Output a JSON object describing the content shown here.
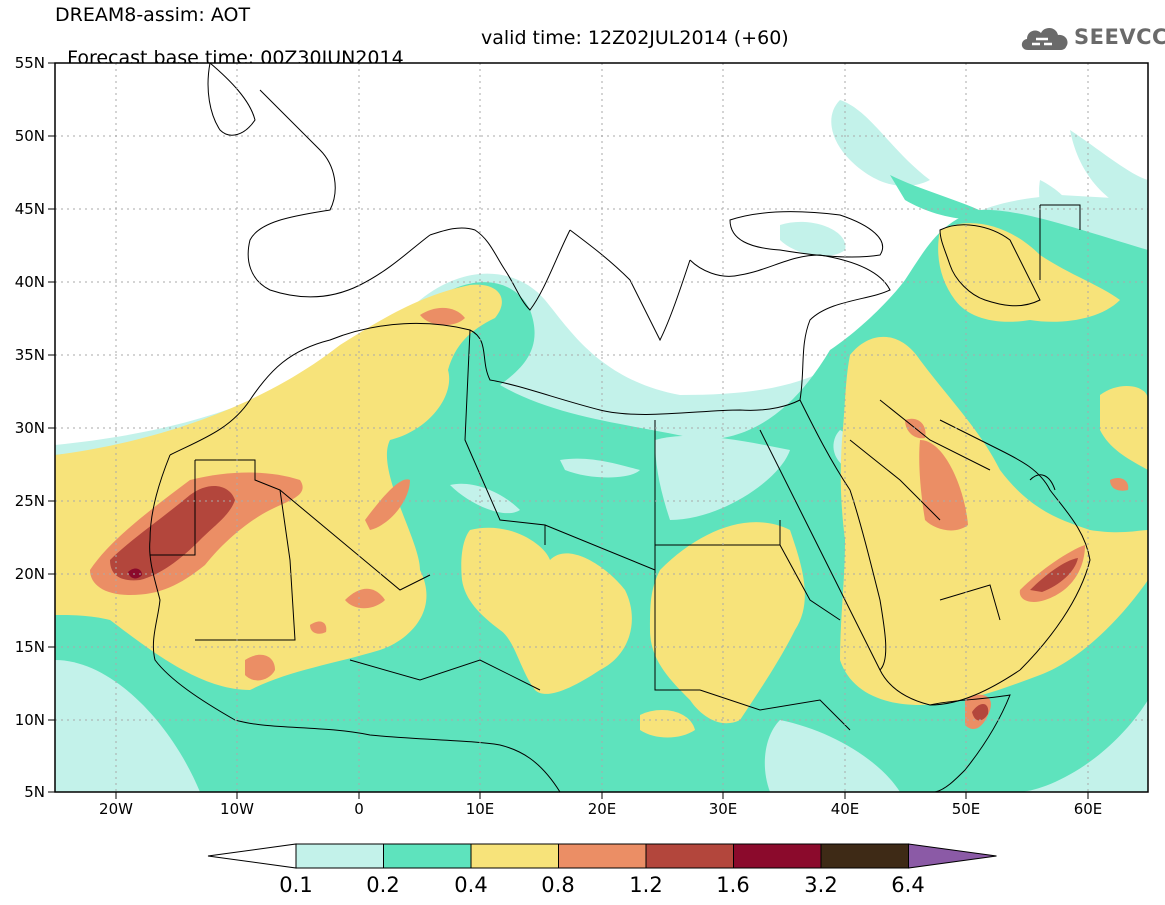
{
  "header": {
    "line1": "DREAM8-assim: AOT",
    "base_time": "Forecast base time: 00Z30JUN2014",
    "valid_time": "valid time: 12Z02JUL2014 (+60)"
  },
  "logo": {
    "text": "SEEVCCC",
    "icon": "cloud-icon"
  },
  "map": {
    "x_ticks": [
      "20W",
      "10W",
      "0",
      "10E",
      "20E",
      "30E",
      "40E",
      "50E",
      "60E"
    ],
    "y_ticks": [
      "55N",
      "50N",
      "45N",
      "40N",
      "35N",
      "30N",
      "25N",
      "20N",
      "15N",
      "10N",
      "5N"
    ],
    "lon_range": [
      -25,
      65
    ],
    "lat_range": [
      5,
      55
    ],
    "gridlines": true
  },
  "legend": {
    "levels": [
      "0.1",
      "0.2",
      "0.4",
      "0.8",
      "1.2",
      "1.6",
      "3.2",
      "6.4"
    ],
    "colors": [
      "#ffffff",
      "#c3f2ea",
      "#5ee3bd",
      "#f7e37a",
      "#eb8e65",
      "#b3463c",
      "#8b0a2c",
      "#3e2a16",
      "#8b5aa6"
    ]
  }
}
